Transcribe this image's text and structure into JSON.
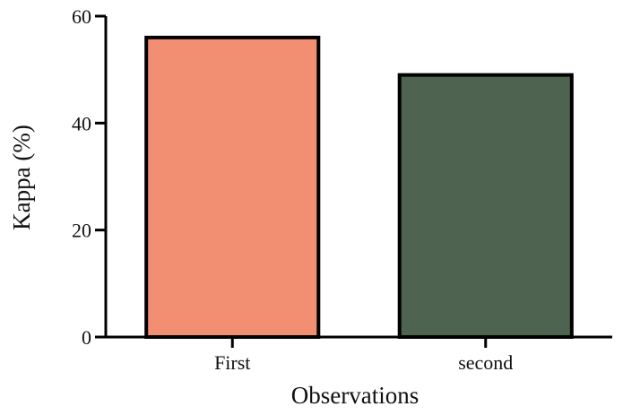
{
  "chart_data": {
    "type": "bar",
    "categories": [
      "First",
      "second"
    ],
    "values": [
      56,
      49
    ],
    "colors": [
      "#f28f73",
      "#4f6450"
    ],
    "title": "",
    "xlabel": "Observations",
    "ylabel": "Kappa (%)",
    "ylim": [
      0,
      60
    ],
    "yticks": [
      0,
      20,
      40,
      60
    ],
    "grid": false,
    "legend": "none"
  }
}
